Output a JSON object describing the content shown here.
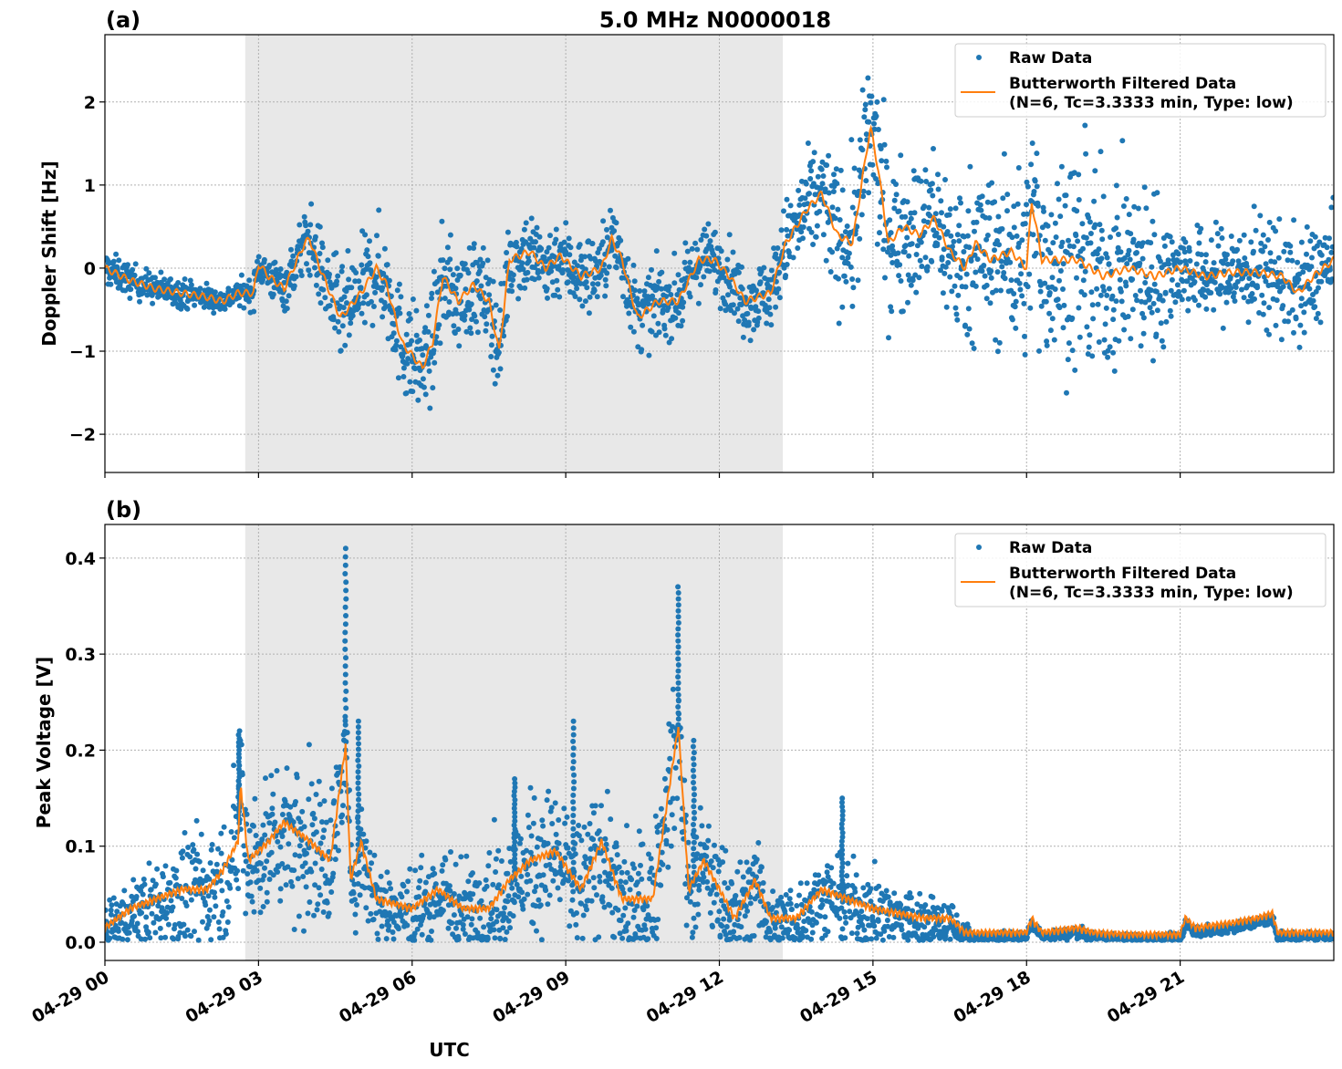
{
  "title": "5.0 MHz N0000018",
  "chart_data": [
    {
      "type": "scatter",
      "panel_label": "(a)",
      "ylabel": "Doppler Shift [Hz]",
      "xlabel": "",
      "xlim_hours": [
        0,
        24
      ],
      "ylim": [
        -2.46,
        2.81
      ],
      "yticks": [
        -2,
        -1,
        0,
        1,
        2
      ],
      "ytick_labels": [
        "−2",
        "−1",
        "0",
        "1",
        "2"
      ],
      "grid": true,
      "legend_position": "top-right",
      "shaded_span_utc_hours": [
        2.74,
        13.24
      ],
      "colors": {
        "raw": "#1f77b4",
        "filtered": "#ff7f0e",
        "shade": "#e8e8e8"
      },
      "legend": {
        "raw": "Raw Data",
        "filtered_line1": "Butterworth Filtered Data",
        "filtered_line2": "(N=6, Tc=3.3333 min, Type: low)"
      },
      "filtered": [
        [
          0,
          0.0
        ],
        [
          0.5,
          -0.15
        ],
        [
          1,
          -0.25
        ],
        [
          1.5,
          -0.3
        ],
        [
          2,
          -0.35
        ],
        [
          2.3,
          -0.4
        ],
        [
          2.6,
          -0.3
        ],
        [
          2.9,
          -0.3
        ],
        [
          3.0,
          0.05
        ],
        [
          3.2,
          -0.1
        ],
        [
          3.5,
          -0.25
        ],
        [
          3.9,
          0.3
        ],
        [
          4.0,
          0.35
        ],
        [
          4.2,
          0.0
        ],
        [
          4.6,
          -0.6
        ],
        [
          5.0,
          -0.3
        ],
        [
          5.3,
          0.0
        ],
        [
          5.5,
          -0.2
        ],
        [
          5.8,
          -0.9
        ],
        [
          6.2,
          -1.2
        ],
        [
          6.4,
          -0.9
        ],
        [
          6.6,
          -0.1
        ],
        [
          6.9,
          -0.4
        ],
        [
          7.2,
          -0.2
        ],
        [
          7.5,
          -0.4
        ],
        [
          7.7,
          -1.0
        ],
        [
          7.9,
          0.1
        ],
        [
          8.3,
          0.2
        ],
        [
          8.6,
          0.0
        ],
        [
          8.9,
          0.15
        ],
        [
          9.3,
          -0.1
        ],
        [
          9.7,
          0.0
        ],
        [
          9.9,
          0.35
        ],
        [
          10.1,
          0.1
        ],
        [
          10.4,
          -0.6
        ],
        [
          10.8,
          -0.4
        ],
        [
          11.2,
          -0.4
        ],
        [
          11.6,
          0.1
        ],
        [
          11.9,
          0.1
        ],
        [
          12.2,
          -0.1
        ],
        [
          12.5,
          -0.4
        ],
        [
          13.0,
          -0.3
        ],
        [
          13.3,
          0.3
        ],
        [
          13.7,
          0.7
        ],
        [
          14.0,
          0.9
        ],
        [
          14.3,
          0.4
        ],
        [
          14.6,
          0.3
        ],
        [
          14.95,
          1.7
        ],
        [
          15.1,
          1.2
        ],
        [
          15.3,
          0.3
        ],
        [
          15.6,
          0.5
        ],
        [
          15.9,
          0.4
        ],
        [
          16.2,
          0.6
        ],
        [
          16.5,
          0.2
        ],
        [
          16.8,
          0.0
        ],
        [
          17.0,
          0.3
        ],
        [
          17.3,
          0.1
        ],
        [
          17.7,
          0.2
        ],
        [
          18.0,
          0.0
        ],
        [
          18.1,
          0.8
        ],
        [
          18.3,
          0.1
        ],
        [
          19.0,
          0.1
        ],
        [
          19.5,
          -0.1
        ],
        [
          20.0,
          0.0
        ],
        [
          20.5,
          -0.1
        ],
        [
          21.0,
          0.0
        ],
        [
          21.5,
          -0.1
        ],
        [
          22,
          -0.05
        ],
        [
          22.5,
          -0.05
        ],
        [
          23,
          -0.1
        ],
        [
          23.3,
          -0.3
        ],
        [
          23.6,
          -0.1
        ],
        [
          24,
          0.1
        ]
      ],
      "raw_spread": [
        [
          0,
          0.15
        ],
        [
          2.5,
          0.1
        ],
        [
          3.5,
          0.2
        ],
        [
          4.5,
          0.4
        ],
        [
          6,
          0.45
        ],
        [
          8.5,
          0.35
        ],
        [
          11,
          0.3
        ],
        [
          13,
          0.3
        ],
        [
          14.9,
          0.7
        ],
        [
          16,
          0.6
        ],
        [
          17,
          0.7
        ],
        [
          19,
          0.9
        ],
        [
          20.5,
          0.7
        ],
        [
          21,
          0.35
        ],
        [
          23,
          0.5
        ],
        [
          24,
          0.4
        ]
      ]
    },
    {
      "type": "scatter",
      "panel_label": "(b)",
      "ylabel": "Peak Voltage [V]",
      "xlabel": "UTC",
      "xlim_hours": [
        0,
        24
      ],
      "ylim": [
        -0.019,
        0.435
      ],
      "yticks": [
        0.0,
        0.1,
        0.2,
        0.3,
        0.4
      ],
      "ytick_labels": [
        "0.0",
        "0.1",
        "0.2",
        "0.3",
        "0.4"
      ],
      "xtick_labels": [
        "04-29 00",
        "04-29 03",
        "04-29 06",
        "04-29 09",
        "04-29 12",
        "04-29 15",
        "04-29 18",
        "04-29 21"
      ],
      "xtick_hours": [
        0,
        3,
        6,
        9,
        12,
        15,
        18,
        21
      ],
      "grid": true,
      "legend_position": "top-right",
      "shaded_span_utc_hours": [
        2.74,
        13.24
      ],
      "legend": {
        "raw": "Raw Data",
        "filtered_line1": "Butterworth Filtered Data",
        "filtered_line2": "(N=6, Tc=3.3333 min, Type: low)"
      },
      "filtered": [
        [
          0,
          0.01
        ],
        [
          0.5,
          0.03
        ],
        [
          1,
          0.04
        ],
        [
          1.5,
          0.05
        ],
        [
          2,
          0.05
        ],
        [
          2.3,
          0.07
        ],
        [
          2.6,
          0.1
        ],
        [
          2.65,
          0.16
        ],
        [
          2.8,
          0.08
        ],
        [
          3.2,
          0.1
        ],
        [
          3.5,
          0.12
        ],
        [
          4.0,
          0.1
        ],
        [
          4.4,
          0.08
        ],
        [
          4.7,
          0.2
        ],
        [
          4.8,
          0.06
        ],
        [
          5.0,
          0.1
        ],
        [
          5.3,
          0.04
        ],
        [
          6,
          0.03
        ],
        [
          6.5,
          0.05
        ],
        [
          7,
          0.03
        ],
        [
          7.5,
          0.03
        ],
        [
          7.9,
          0.06
        ],
        [
          8.3,
          0.08
        ],
        [
          8.8,
          0.09
        ],
        [
          9.3,
          0.05
        ],
        [
          9.7,
          0.1
        ],
        [
          10.1,
          0.04
        ],
        [
          10.7,
          0.04
        ],
        [
          11.2,
          0.22
        ],
        [
          11.4,
          0.05
        ],
        [
          11.7,
          0.08
        ],
        [
          12.3,
          0.02
        ],
        [
          12.7,
          0.06
        ],
        [
          13.0,
          0.02
        ],
        [
          13.5,
          0.02
        ],
        [
          14,
          0.05
        ],
        [
          14.5,
          0.04
        ],
        [
          15,
          0.03
        ],
        [
          16,
          0.02
        ],
        [
          16.5,
          0.02
        ],
        [
          16.8,
          0.005
        ],
        [
          18,
          0.005
        ],
        [
          18.1,
          0.02
        ],
        [
          18.3,
          0.005
        ],
        [
          19.0,
          0.01
        ],
        [
          19.3,
          0.005
        ],
        [
          20,
          0.003
        ],
        [
          21,
          0.003
        ],
        [
          21.1,
          0.02
        ],
        [
          21.3,
          0.01
        ],
        [
          22,
          0.015
        ],
        [
          22.5,
          0.02
        ],
        [
          22.8,
          0.025
        ],
        [
          22.9,
          0.005
        ],
        [
          24,
          0.005
        ]
      ],
      "raw_spread": [
        [
          0,
          0.02
        ],
        [
          2.5,
          0.05
        ],
        [
          4,
          0.06
        ],
        [
          5.5,
          0.03
        ],
        [
          8.5,
          0.05
        ],
        [
          11,
          0.05
        ],
        [
          13,
          0.03
        ],
        [
          14.5,
          0.03
        ],
        [
          16.5,
          0.02
        ],
        [
          17,
          0.004
        ],
        [
          24,
          0.004
        ]
      ],
      "raw_peaks": [
        [
          2.62,
          0.22
        ],
        [
          4.7,
          0.41
        ],
        [
          4.95,
          0.23
        ],
        [
          9.15,
          0.23
        ],
        [
          11.2,
          0.37
        ],
        [
          11.5,
          0.21
        ],
        [
          14.4,
          0.15
        ],
        [
          8.0,
          0.17
        ]
      ]
    }
  ]
}
